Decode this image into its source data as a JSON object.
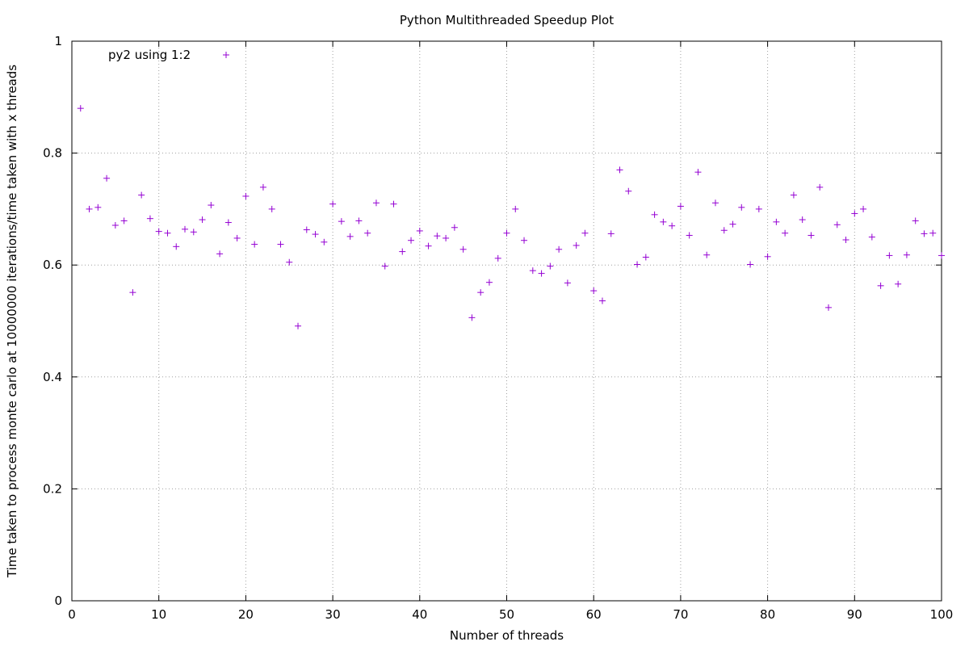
{
  "chart_data": {
    "type": "scatter",
    "title": "Python Multithreaded Speedup Plot",
    "xlabel": "Number of threads",
    "ylabel": "Time taken to process monte carlo at 10000000 iterations/time taken with x threads",
    "xlim": [
      0,
      100
    ],
    "ylim": [
      0,
      1
    ],
    "xticks": [
      "0",
      "10",
      "20",
      "30",
      "40",
      "50",
      "60",
      "70",
      "80",
      "90",
      "100"
    ],
    "yticks": [
      "0",
      "0.2",
      "0.4",
      "0.6",
      "0.8",
      "1"
    ],
    "grid": true,
    "legend_position": "top-left",
    "marker": "+",
    "series": [
      {
        "name": "py2 using 1:2",
        "color": "#9400d3",
        "x": [
          1,
          2,
          3,
          4,
          5,
          6,
          7,
          8,
          9,
          10,
          11,
          12,
          13,
          14,
          15,
          16,
          17,
          18,
          19,
          20,
          21,
          22,
          23,
          24,
          25,
          26,
          27,
          28,
          29,
          30,
          31,
          32,
          33,
          34,
          35,
          36,
          37,
          38,
          39,
          40,
          41,
          42,
          43,
          44,
          45,
          46,
          47,
          48,
          49,
          50,
          51,
          52,
          53,
          54,
          55,
          56,
          57,
          58,
          59,
          60,
          61,
          62,
          63,
          64,
          65,
          66,
          67,
          68,
          69,
          70,
          71,
          72,
          73,
          74,
          75,
          76,
          77,
          78,
          79,
          80,
          81,
          82,
          83,
          84,
          85,
          86,
          87,
          88,
          89,
          90,
          91,
          92,
          93,
          94,
          95,
          96,
          97,
          98,
          99,
          100
        ],
        "y": [
          0.88,
          0.7,
          0.703,
          0.755,
          0.671,
          0.679,
          0.551,
          0.725,
          0.683,
          0.66,
          0.657,
          0.633,
          0.664,
          0.659,
          0.681,
          0.707,
          0.62,
          0.676,
          0.648,
          0.723,
          0.637,
          0.739,
          0.7,
          0.637,
          0.605,
          0.491,
          0.663,
          0.655,
          0.641,
          0.709,
          0.678,
          0.651,
          0.679,
          0.657,
          0.711,
          0.598,
          0.709,
          0.624,
          0.644,
          0.661,
          0.634,
          0.652,
          0.648,
          0.667,
          0.628,
          0.506,
          0.551,
          0.569,
          0.612,
          0.657,
          0.7,
          0.644,
          0.59,
          0.585,
          0.598,
          0.628,
          0.568,
          0.635,
          0.657,
          0.554,
          0.536,
          0.656,
          0.77,
          0.732,
          0.601,
          0.614,
          0.69,
          0.677,
          0.67,
          0.705,
          0.653,
          0.766,
          0.618,
          0.711,
          0.662,
          0.673,
          0.703,
          0.601,
          0.7,
          0.615,
          0.677,
          0.657,
          0.725,
          0.681,
          0.653,
          0.739,
          0.524,
          0.672,
          0.645,
          0.692,
          0.7,
          0.65,
          0.563,
          0.617,
          0.566,
          0.618,
          0.679,
          0.656,
          0.657,
          0.617
        ]
      }
    ]
  }
}
